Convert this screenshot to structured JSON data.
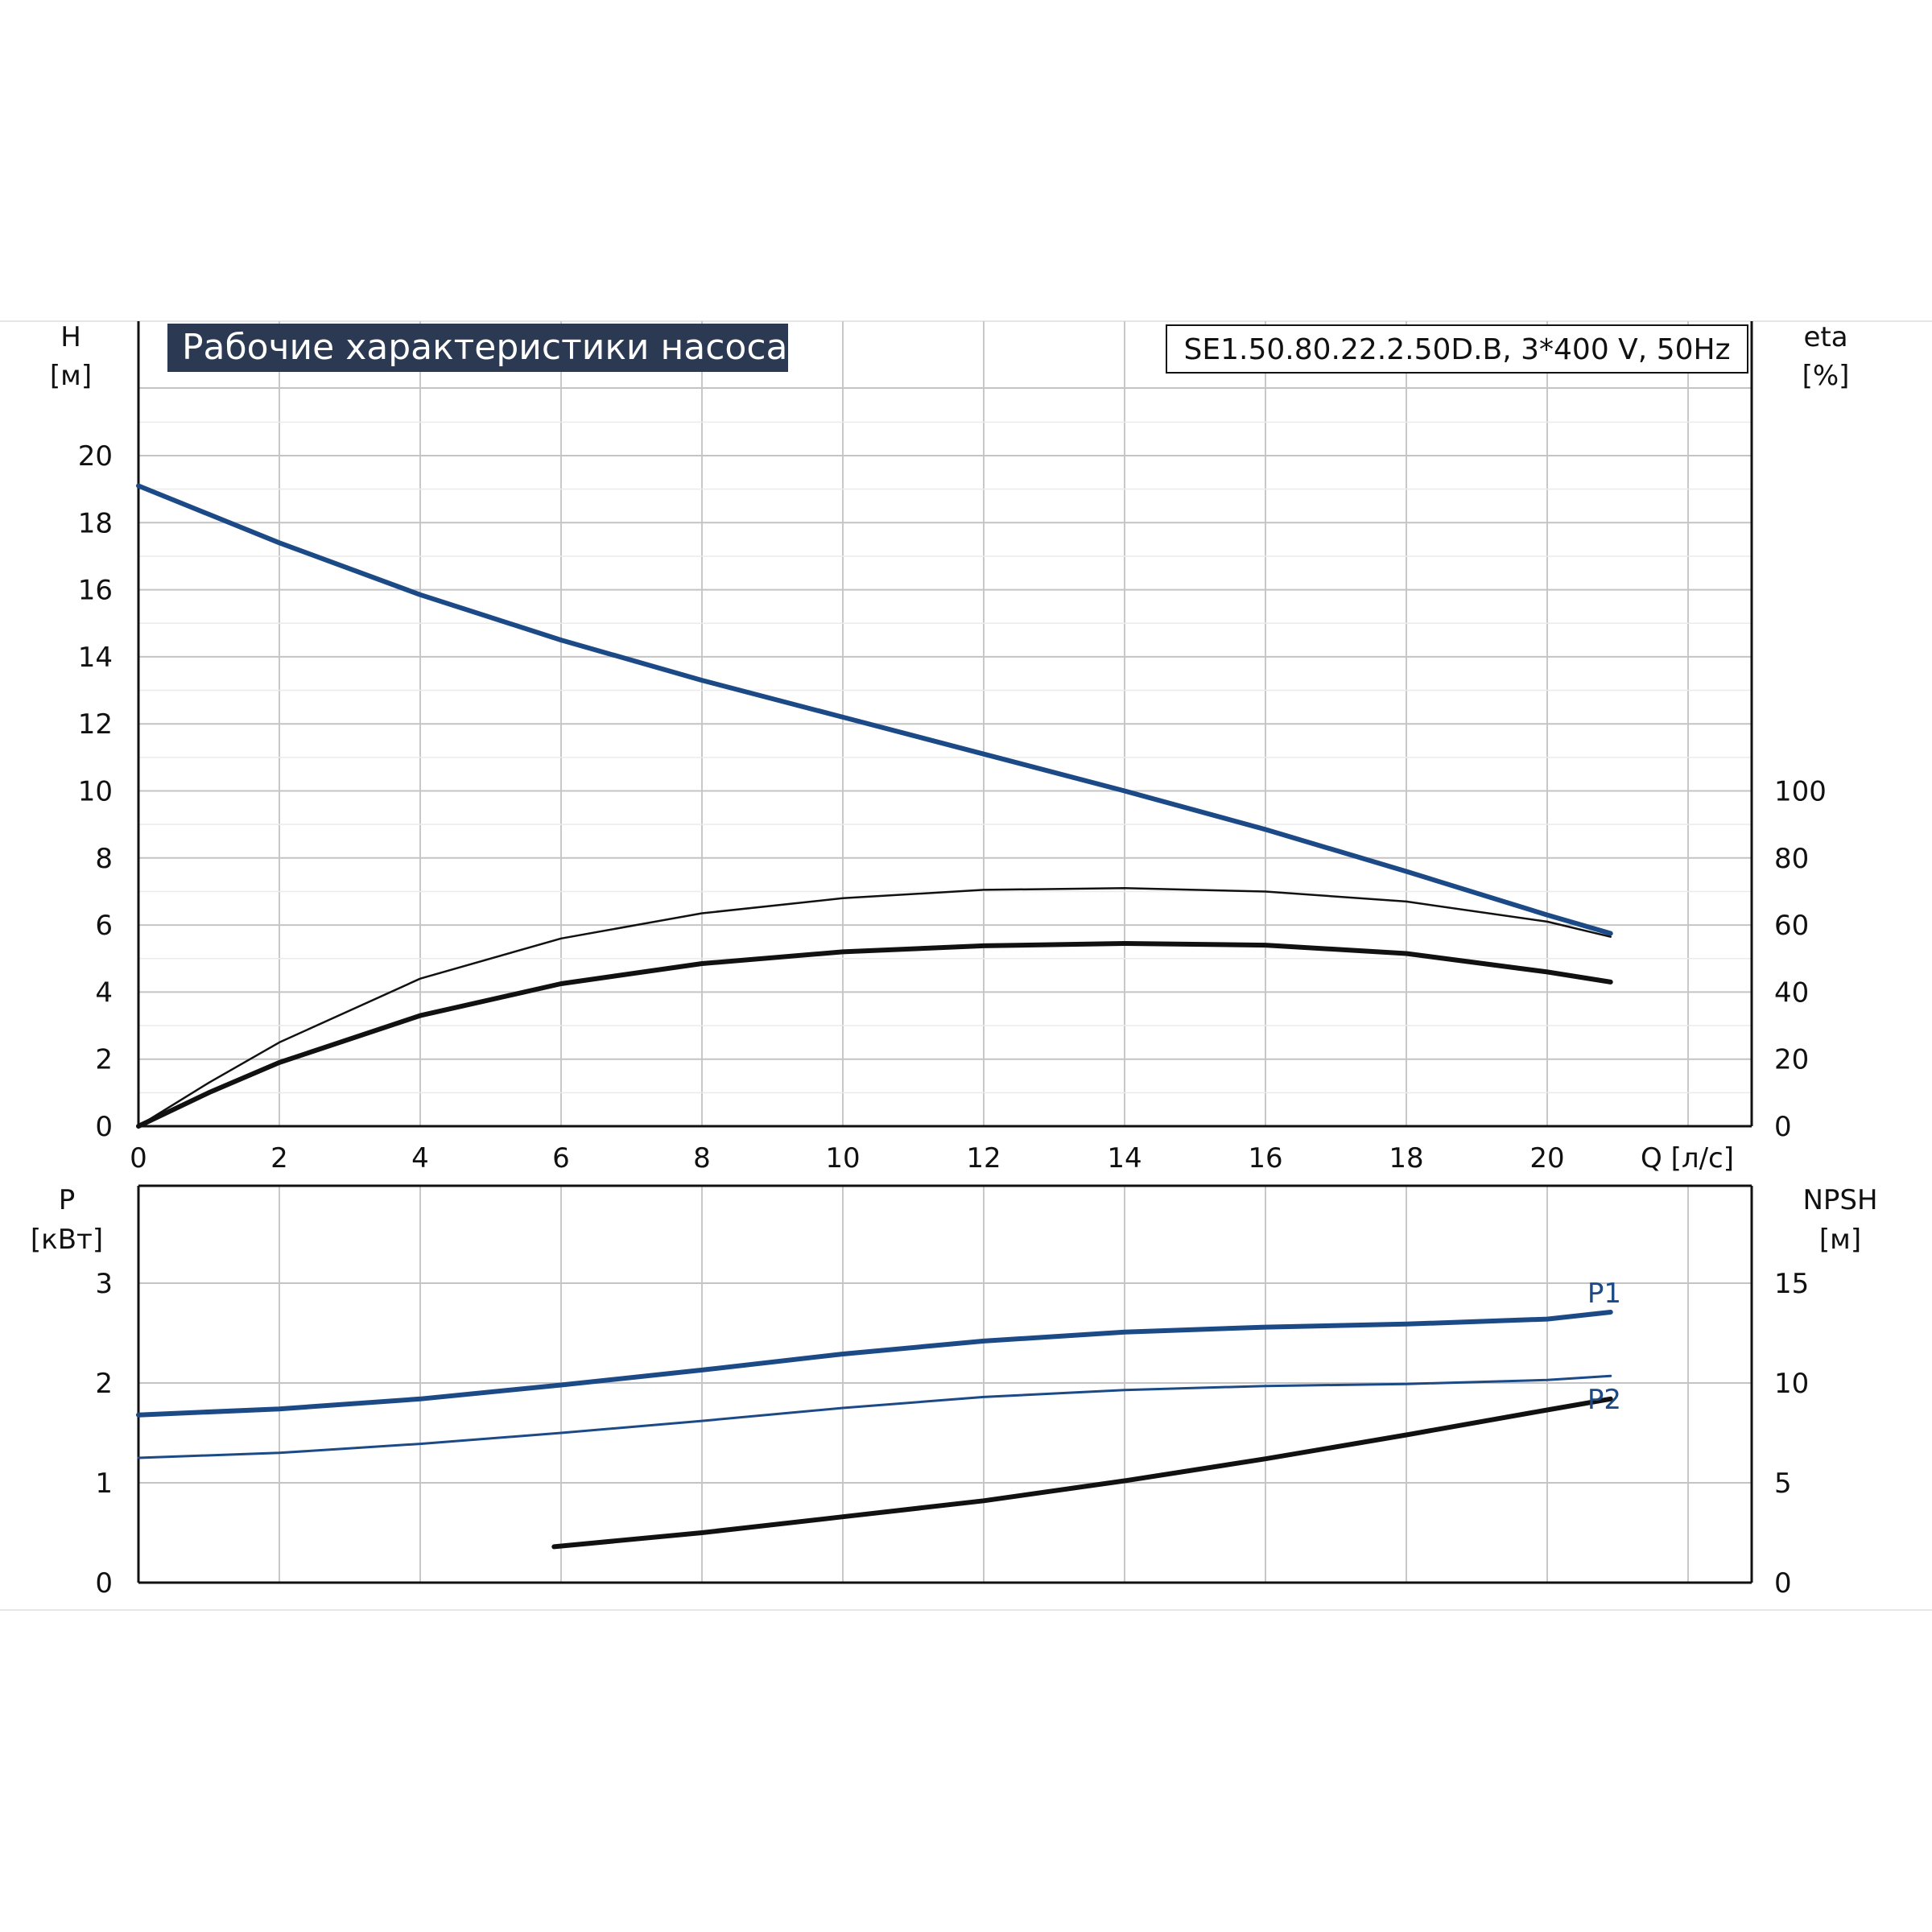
{
  "chart_data": [
    {
      "type": "line",
      "title": "Рабочие характеристики насоса",
      "subtitle": "SE1.50.80.22.2.50D.B, 3*400 V, 50Hz",
      "xlabel": "Q [л/с]",
      "ylabel": "H\n[м]",
      "ylabel_line1": "H",
      "ylabel_line2": "[м]",
      "y2label_line1": "eta",
      "y2label_line2": "[%]",
      "xlim": [
        0,
        23
      ],
      "ylim": [
        0,
        22
      ],
      "y2lim": [
        0,
        220
      ],
      "x_ticks": [
        0,
        2,
        4,
        6,
        8,
        10,
        12,
        14,
        16,
        18,
        20
      ],
      "x_tick_labels": [
        "0",
        "2",
        "4",
        "6",
        "8",
        "10",
        "12",
        "14",
        "16",
        "18",
        "20"
      ],
      "y_ticks": [
        0,
        2,
        4,
        6,
        8,
        10,
        12,
        14,
        16,
        18,
        20
      ],
      "y_tick_labels": [
        "0",
        "2",
        "4",
        "6",
        "8",
        "10",
        "12",
        "14",
        "16",
        "18",
        "20"
      ],
      "y2_ticks": [
        0,
        20,
        40,
        60,
        80,
        100
      ],
      "y2_tick_labels": [
        "0",
        "20",
        "40",
        "60",
        "80",
        "100"
      ],
      "grid": true,
      "series": [
        {
          "axis": "left",
          "color": "#1b4a86",
          "x": [
            0,
            2,
            4,
            6,
            8,
            10,
            12,
            14,
            16,
            18,
            20,
            20.9
          ],
          "values": [
            19.1,
            17.4,
            15.85,
            14.5,
            13.3,
            12.2,
            11.1,
            10.0,
            8.85,
            7.6,
            6.3,
            5.75
          ]
        },
        {
          "axis": "right",
          "color": "#111111",
          "x": [
            0,
            1,
            2,
            4,
            6,
            8,
            10,
            12,
            14,
            16,
            18,
            20,
            20.9
          ],
          "values": [
            0,
            13,
            25,
            44,
            56,
            63.5,
            68,
            70.5,
            71,
            70,
            67,
            61,
            56.5
          ]
        },
        {
          "axis": "right",
          "color": "#111111",
          "x": [
            0,
            1,
            2,
            4,
            6,
            8,
            10,
            12,
            14,
            16,
            18,
            20,
            20.9
          ],
          "values": [
            0,
            10,
            19,
            33,
            42.5,
            48.5,
            52,
            53.8,
            54.5,
            54,
            51.5,
            46,
            43
          ]
        }
      ]
    },
    {
      "type": "line",
      "ylabel_line1": "P",
      "ylabel_line2": "[кВт]",
      "y2label_line1": "NPSH",
      "y2label_line2": "[м]",
      "xlim": [
        0,
        23
      ],
      "ylim": [
        0,
        4
      ],
      "y2lim": [
        0,
        20
      ],
      "x_ticks": [
        0,
        2,
        4,
        6,
        8,
        10,
        12,
        14,
        16,
        18,
        20,
        22
      ],
      "y_ticks": [
        0,
        1,
        2,
        3
      ],
      "y_tick_labels": [
        "0",
        "1",
        "2",
        "3"
      ],
      "y2_ticks": [
        0,
        5,
        10,
        15
      ],
      "y2_tick_labels": [
        "0",
        "5",
        "10",
        "15"
      ],
      "grid": true,
      "series": [
        {
          "name": "P1",
          "axis": "left",
          "color": "#1b4a86",
          "x": [
            0,
            2,
            4,
            6,
            8,
            10,
            12,
            14,
            16,
            18,
            20,
            20.9
          ],
          "values": [
            1.68,
            1.74,
            1.84,
            1.98,
            2.13,
            2.29,
            2.42,
            2.51,
            2.56,
            2.59,
            2.64,
            2.71
          ]
        },
        {
          "axis": "left",
          "color": "#1b4a86",
          "x": [
            0,
            2,
            4,
            6,
            8,
            10,
            12,
            14,
            16,
            18,
            20,
            20.9
          ],
          "values": [
            1.25,
            1.3,
            1.39,
            1.5,
            1.62,
            1.75,
            1.86,
            1.93,
            1.97,
            1.99,
            2.03,
            2.07
          ]
        },
        {
          "name": "P2",
          "axis": "right",
          "color": "#111111",
          "x": [
            5.9,
            8,
            10,
            12,
            14,
            16,
            18,
            20,
            20.9
          ],
          "values": [
            1.8,
            2.5,
            3.3,
            4.1,
            5.1,
            6.2,
            7.4,
            8.65,
            9.2
          ]
        }
      ]
    }
  ]
}
